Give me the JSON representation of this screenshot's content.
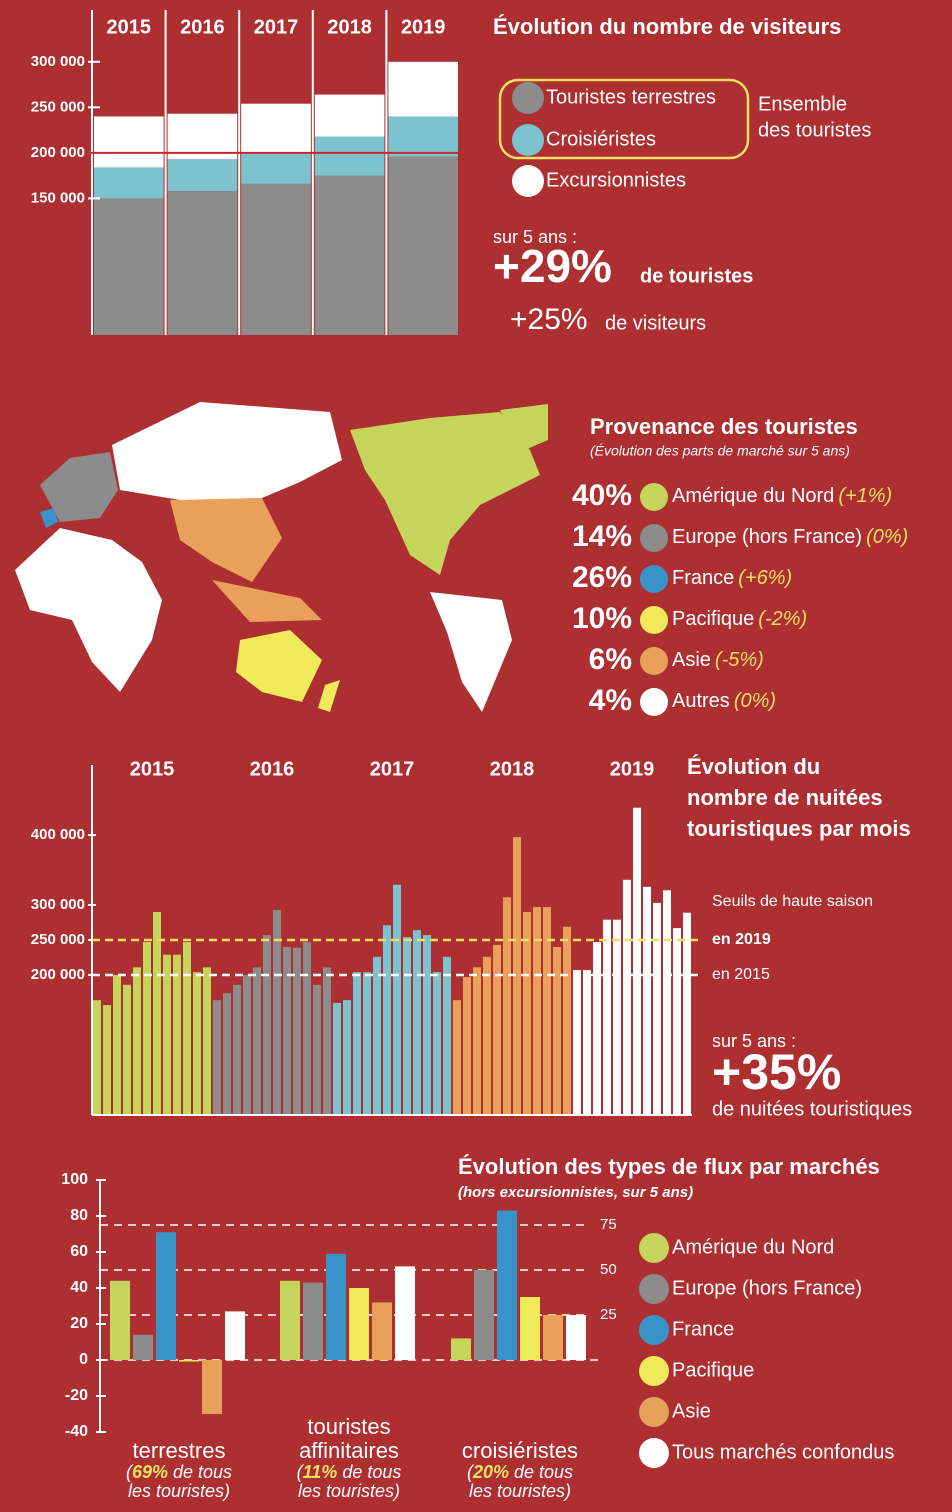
{
  "chart_data": [
    {
      "type": "stacked-bar",
      "title": "Évolution du nombre de visiteurs",
      "categories": [
        "2015",
        "2016",
        "2017",
        "2018",
        "2019"
      ],
      "series": [
        {
          "name": "Touristes terrestres",
          "color": "#8c8c8c",
          "values": [
            150000,
            158000,
            166000,
            175000,
            196000
          ]
        },
        {
          "name": "Croisiéristes",
          "color": "#7cc3cf",
          "values": [
            34000,
            35000,
            34000,
            43000,
            44000
          ]
        },
        {
          "name": "Excursionnistes",
          "color": "#ffffff",
          "values": [
            56000,
            50000,
            54000,
            46000,
            60000
          ]
        }
      ],
      "group_label": [
        "Ensemble",
        "des touristes"
      ],
      "ylim": [
        0,
        310000
      ],
      "yticks": [
        {
          "value": 150000,
          "label": "150 000"
        },
        {
          "value": 200000,
          "label": "200 000"
        },
        {
          "value": 250000,
          "label": "250 000"
        },
        {
          "value": 300000,
          "label": "300 000"
        }
      ],
      "highlight": 200000,
      "stats": {
        "intro": "sur 5 ans :",
        "big": "+29%",
        "big_text": "de touristes",
        "second": "+25%",
        "second_text": "de visiteurs"
      }
    },
    {
      "type": "bar",
      "title": [
        "Évolution du",
        "nombre de nuitées",
        "touristiques par mois"
      ],
      "series": [
        {
          "name": "2015",
          "color": "#c5d45a",
          "values": [
            164000,
            157000,
            200000,
            186000,
            211000,
            247000,
            290000,
            229000,
            229000,
            247000,
            204000,
            211000
          ]
        },
        {
          "name": "2016",
          "color": "#8c8c8c",
          "values": [
            164000,
            174000,
            186000,
            200000,
            211000,
            257000,
            293000,
            240000,
            239000,
            247000,
            186000,
            211000
          ]
        },
        {
          "name": "2017",
          "color": "#7cc3cf",
          "values": [
            160000,
            164000,
            204000,
            204000,
            226000,
            271000,
            329000,
            254000,
            264000,
            257000,
            204000,
            226000
          ]
        },
        {
          "name": "2018",
          "color": "#e8a05a",
          "values": [
            164000,
            197000,
            211000,
            226000,
            243000,
            311000,
            397000,
            290000,
            297000,
            297000,
            240000,
            269000
          ]
        },
        {
          "name": "2019",
          "color": "#ffffff",
          "values": [
            207000,
            207000,
            247000,
            279000,
            279000,
            336000,
            439000,
            326000,
            303000,
            321000,
            267000,
            289000
          ]
        }
      ],
      "ylim": [
        0,
        500000
      ],
      "yticks": [
        {
          "value": 200000,
          "label": "200 000"
        },
        {
          "value": 250000,
          "label": "250 000"
        },
        {
          "value": 300000,
          "label": "300 000"
        },
        {
          "value": 400000,
          "label": "400 000"
        }
      ],
      "threshold_title": "Seuils de haute saison",
      "thresholds": [
        {
          "value": 250000,
          "label": "en 2019",
          "color": "#f0e060"
        },
        {
          "value": 200000,
          "label": "en 2015",
          "color": "#ffffff"
        }
      ],
      "stats": {
        "intro": "sur 5 ans :",
        "big": "+35%",
        "big_text": "de nuitées touristiques"
      }
    },
    {
      "type": "grouped-bar",
      "title": "Évolution des types de flux par marchés",
      "subtitle": "(hors excursionnistes, sur 5 ans)",
      "categories": [
        "terrestres",
        "touristes affinitaires",
        "croisiéristes"
      ],
      "category_notes": [
        {
          "open": "(",
          "share": "69%",
          "rest": " de tous",
          "line2": "les touristes)"
        },
        {
          "open": "(",
          "share": "11%",
          "rest": " de tous",
          "line2": "les touristes)"
        },
        {
          "open": "(",
          "share": "20%",
          "rest": " de tous",
          "line2": "les touristes)"
        }
      ],
      "series": [
        {
          "name": "Amérique du Nord",
          "color": "#c5d45a",
          "values": [
            44,
            44,
            12
          ]
        },
        {
          "name": "Europe (hors France)",
          "color": "#8c8c8c",
          "values": [
            14,
            43,
            50
          ]
        },
        {
          "name": "France",
          "color": "#3a93c8",
          "values": [
            71,
            59,
            83
          ]
        },
        {
          "name": "Pacifique",
          "color": "#f0ea5a",
          "values": [
            0,
            40,
            35
          ]
        },
        {
          "name": "Asie",
          "color": "#e8a05a",
          "values": [
            -30,
            32,
            25
          ]
        },
        {
          "name": "Tous marchés confondus",
          "color": "#ffffff",
          "values": [
            27,
            52,
            25
          ]
        }
      ],
      "ylim": [
        -40,
        100
      ],
      "yticks": [
        -40,
        -20,
        0,
        20,
        40,
        60,
        80,
        100
      ],
      "y2lim": [
        -40,
        100
      ],
      "y2ticks": [
        25,
        50,
        75
      ]
    }
  ],
  "provenance": {
    "title": "Provenance des touristes",
    "subtitle": "(Évolution des parts de marché sur 5 ans)",
    "rows": [
      {
        "share": "40%",
        "region": "Amérique du Nord",
        "change": "(+1%)",
        "color": "#c5d45a"
      },
      {
        "share": "14%",
        "region": "Europe (hors France)",
        "change": "(0%)",
        "color": "#8c8c8c"
      },
      {
        "share": "26%",
        "region": "France",
        "change": "(+6%)",
        "color": "#3a93c8"
      },
      {
        "share": "10%",
        "region": "Pacifique",
        "change": "(-2%)",
        "color": "#f0ea5a"
      },
      {
        "share": "6%",
        "region": "Asie",
        "change": "(-5%)",
        "color": "#e8a05a"
      },
      {
        "share": "4%",
        "region": "Autres",
        "change": "(0%)",
        "color": "#ffffff"
      }
    ]
  }
}
